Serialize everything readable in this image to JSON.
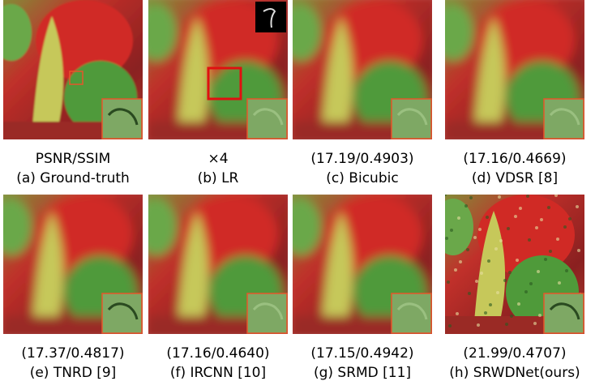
{
  "panels": [
    {
      "metric": "PSNR/SSIM",
      "label": "(a) Ground-truth"
    },
    {
      "metric": "×4",
      "label": "(b) LR"
    },
    {
      "metric": "(17.19/0.4903)",
      "label": "(c) Bicubic"
    },
    {
      "metric": "(17.16/0.4669)",
      "label": "(d) VDSR [8]"
    },
    {
      "metric": "(17.37/0.4817)",
      "label": "(e) TNRD [9]"
    },
    {
      "metric": "(17.16/0.4640)",
      "label": "(f) IRCNN [10]"
    },
    {
      "metric": "(17.15/0.4942)",
      "label": "(g) SRMD [11]"
    },
    {
      "metric": "(21.99/0.4707)",
      "label": "(h) SRWDNet(ours)"
    }
  ]
}
